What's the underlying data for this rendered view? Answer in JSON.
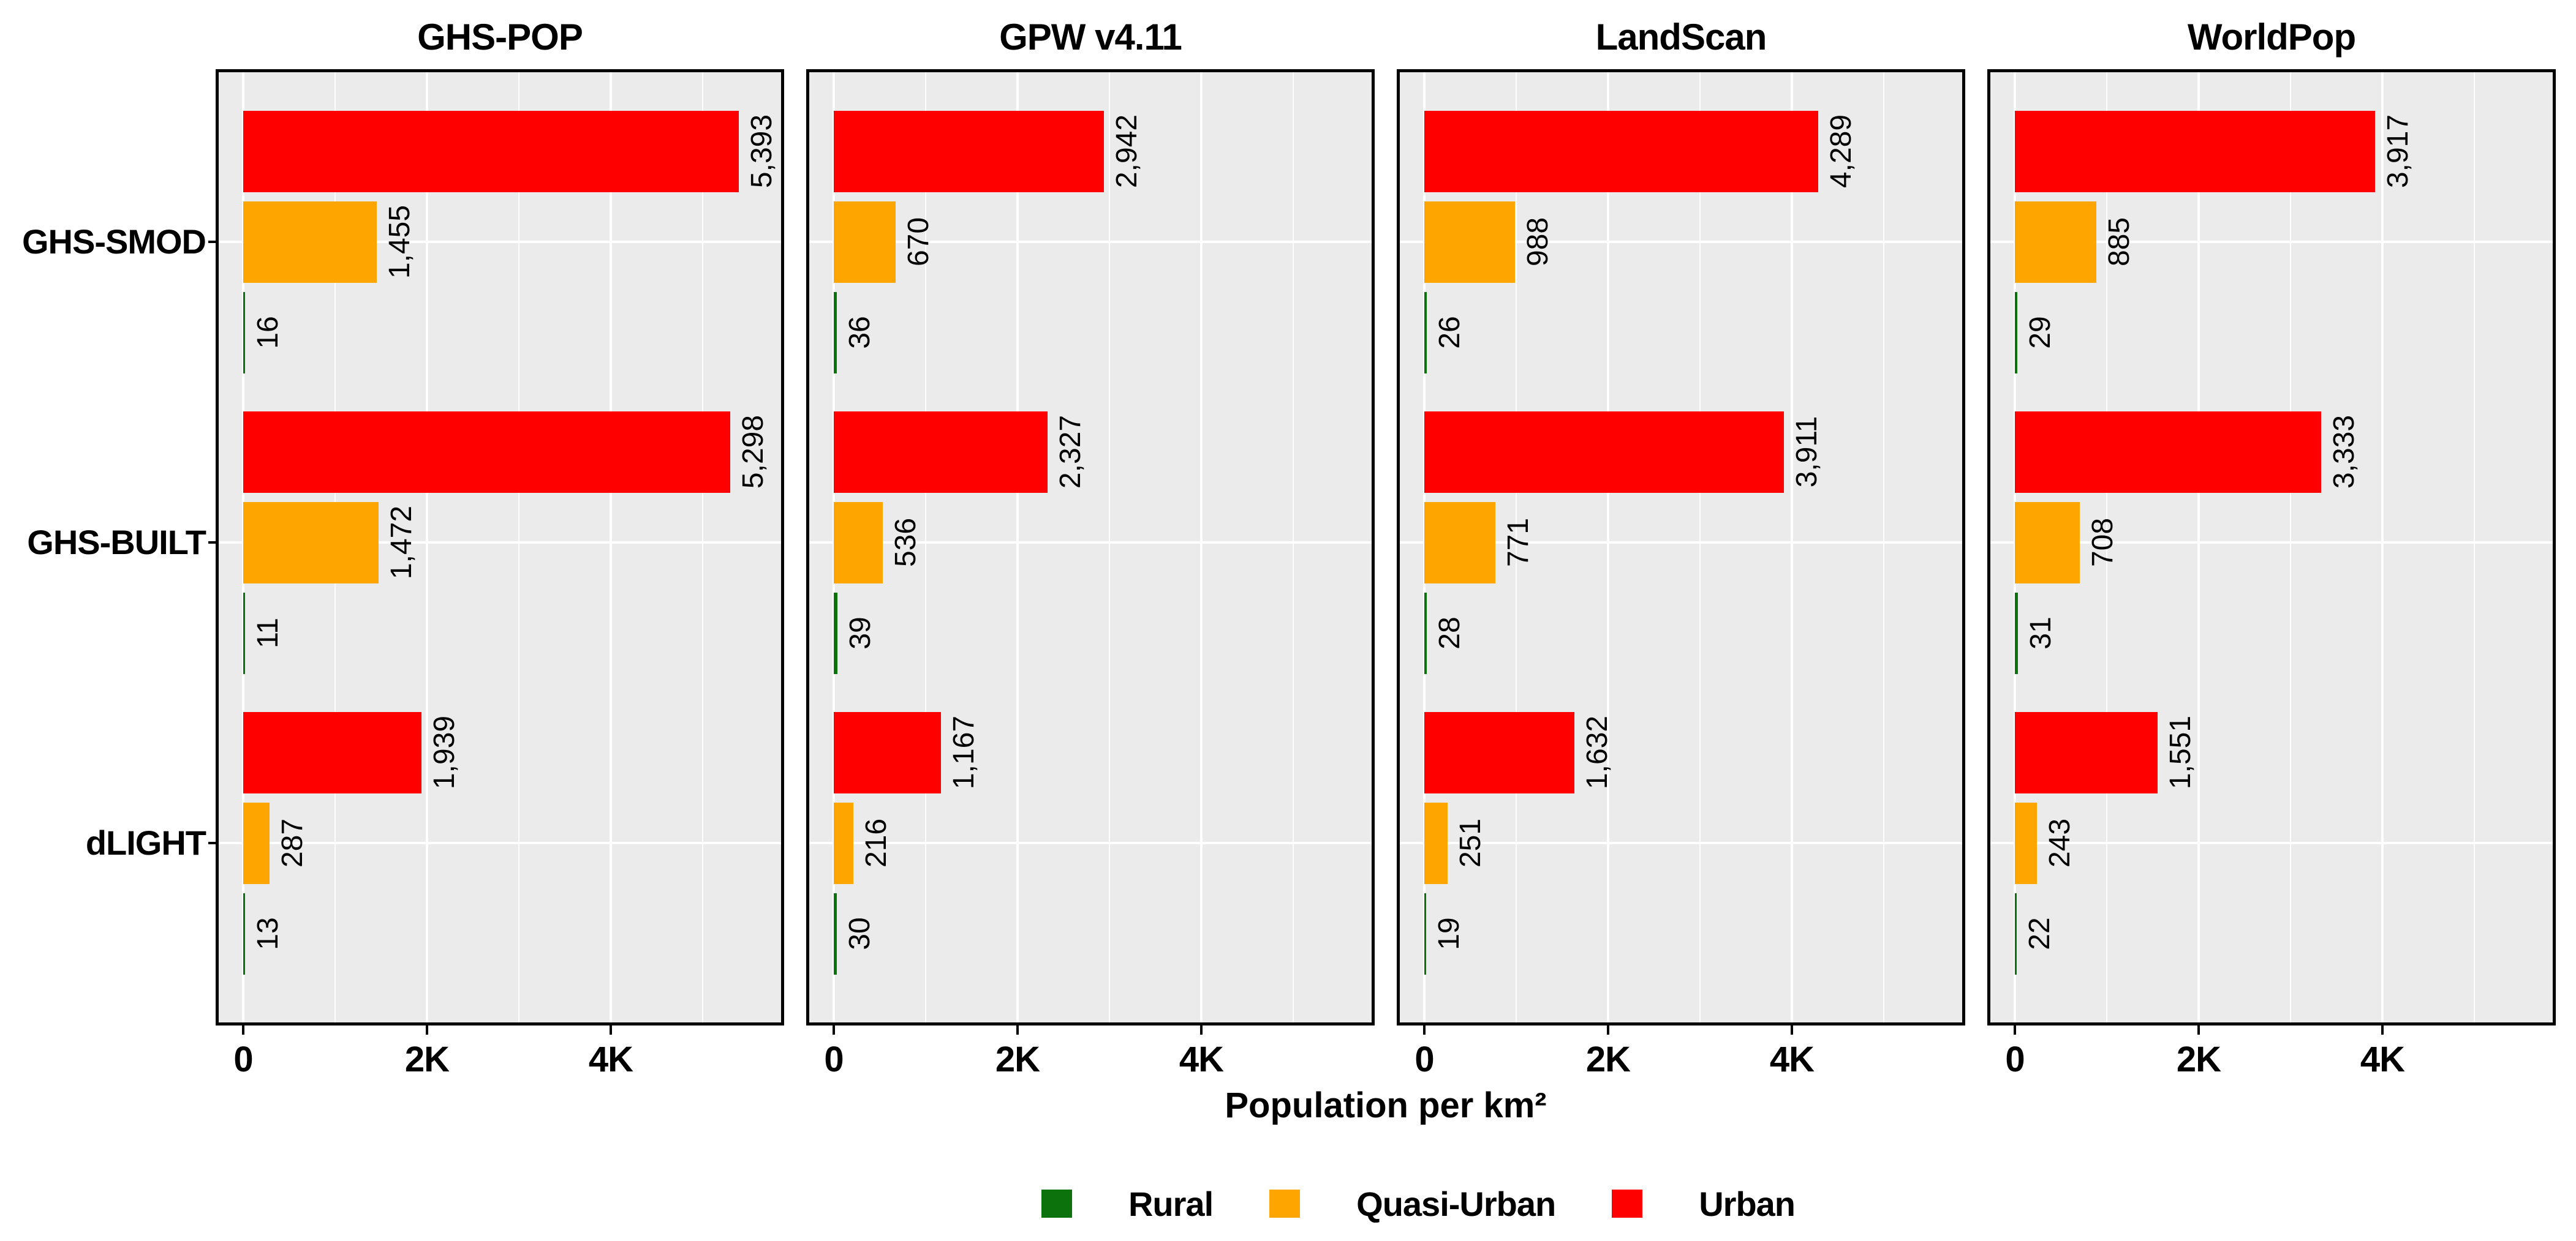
{
  "chart_data": {
    "type": "bar",
    "orientation": "horizontal",
    "xlabel": "Population per km²",
    "xlim": [
      0,
      5900
    ],
    "x_ticks": [
      {
        "value": 0,
        "label": "0"
      },
      {
        "value": 2000,
        "label": "2K"
      },
      {
        "value": 4000,
        "label": "4K"
      }
    ],
    "x_minor_gridlines": [
      1000,
      3000,
      5000
    ],
    "grid": true,
    "panel_background": "#EBEBEB",
    "gridline_color": "#FFFFFF",
    "panel_border_color": "#000000",
    "value_label_color": "#000000",
    "value_label_rotation": -90,
    "categories": [
      "GHS-SMOD",
      "GHS-BUILT",
      "dLIGHT"
    ],
    "classes": [
      {
        "key": "urban",
        "label": "Urban",
        "color": "#FF0000"
      },
      {
        "key": "quasi_urban",
        "label": "Quasi-Urban",
        "color": "#FFA500"
      },
      {
        "key": "rural",
        "label": "Rural",
        "color": "#0C730C"
      }
    ],
    "class_order_top_to_bottom": [
      "urban",
      "quasi_urban",
      "rural"
    ],
    "legend": {
      "position": "bottom",
      "order": [
        "rural",
        "quasi_urban",
        "urban"
      ]
    },
    "facets": [
      {
        "title": "GHS-POP",
        "values": {
          "GHS-SMOD": {
            "urban": 5393,
            "quasi_urban": 1455,
            "rural": 16
          },
          "GHS-BUILT": {
            "urban": 5298,
            "quasi_urban": 1472,
            "rural": 11
          },
          "dLIGHT": {
            "urban": 1939,
            "quasi_urban": 287,
            "rural": 13
          }
        }
      },
      {
        "title": "GPW v4.11",
        "values": {
          "GHS-SMOD": {
            "urban": 2942,
            "quasi_urban": 670,
            "rural": 36
          },
          "GHS-BUILT": {
            "urban": 2327,
            "quasi_urban": 536,
            "rural": 39
          },
          "dLIGHT": {
            "urban": 1167,
            "quasi_urban": 216,
            "rural": 30
          }
        }
      },
      {
        "title": "LandScan",
        "values": {
          "GHS-SMOD": {
            "urban": 4289,
            "quasi_urban": 988,
            "rural": 26
          },
          "GHS-BUILT": {
            "urban": 3911,
            "quasi_urban": 771,
            "rural": 28
          },
          "dLIGHT": {
            "urban": 1632,
            "quasi_urban": 251,
            "rural": 19
          }
        }
      },
      {
        "title": "WorldPop",
        "values": {
          "GHS-SMOD": {
            "urban": 3917,
            "quasi_urban": 885,
            "rural": 29
          },
          "GHS-BUILT": {
            "urban": 3333,
            "quasi_urban": 708,
            "rural": 31
          },
          "dLIGHT": {
            "urban": 1551,
            "quasi_urban": 243,
            "rural": 22
          }
        }
      }
    ]
  }
}
